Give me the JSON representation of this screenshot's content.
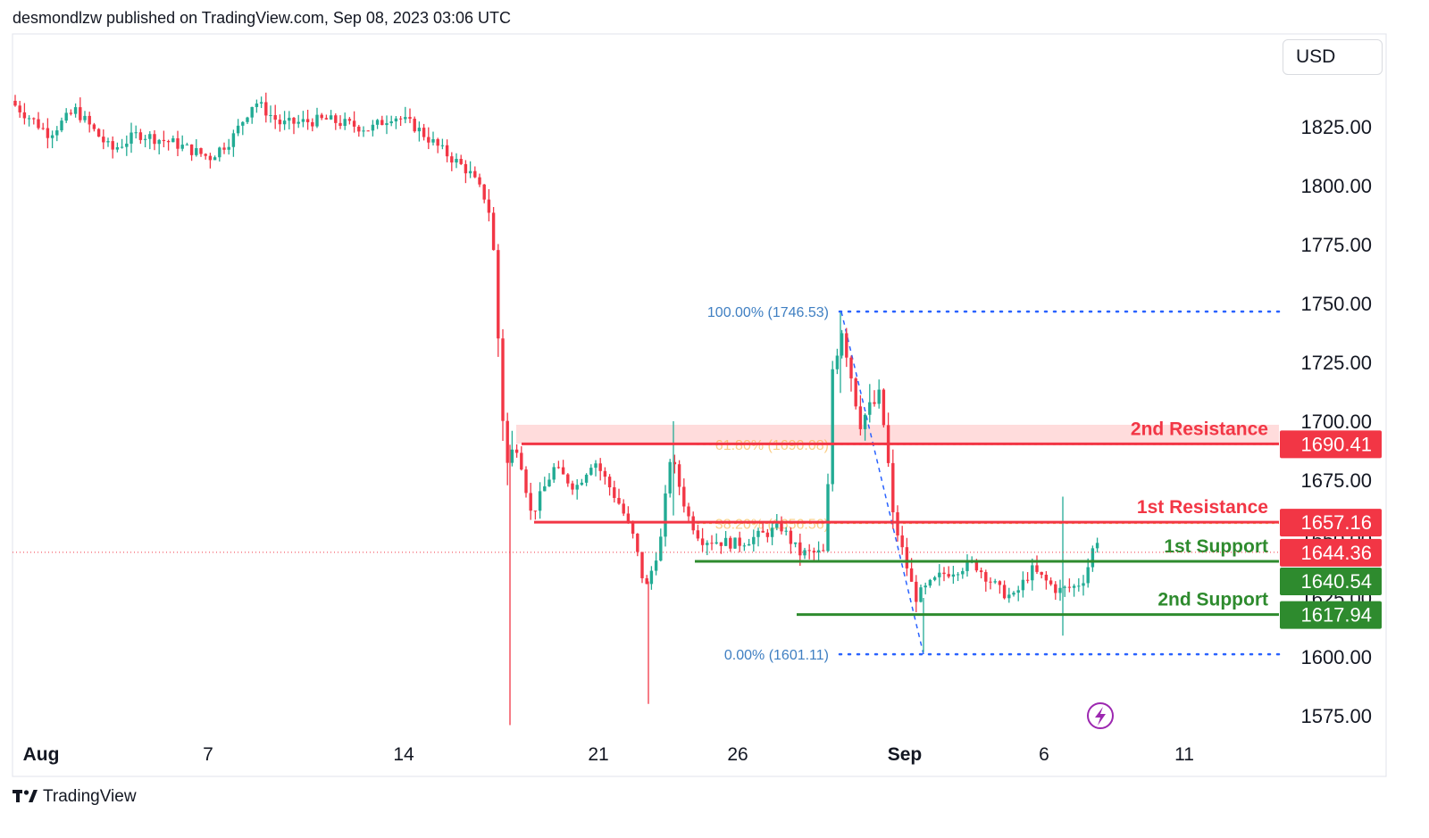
{
  "header": {
    "published": "desmondlzw published on TradingView.com, Sep 08, 2023 03:06 UTC"
  },
  "footer": {
    "brand": "TradingView",
    "logo_icon": "tradingview-logo-icon"
  },
  "currency": "USD",
  "colors": {
    "up": "#22ab94",
    "down": "#f23645",
    "resistance": "#f23645",
    "support": "#2e8b2e",
    "fib": "#2962ff",
    "fib_text": "#3f7fc2",
    "zone": "#ffd6d6"
  },
  "chart_data": {
    "type": "candlestick",
    "symbol_currency": "USD",
    "ylim": [
      1565,
      1850
    ],
    "y_ticks": [
      "1825.00",
      "1800.00",
      "1775.00",
      "1750.00",
      "1725.00",
      "1700.00",
      "1675.00",
      "1650.00",
      "1625.00",
      "1600.00",
      "1575.00"
    ],
    "x_ticks": [
      {
        "label": "Aug",
        "bold": true
      },
      {
        "label": "7",
        "bold": false
      },
      {
        "label": "14",
        "bold": false
      },
      {
        "label": "21",
        "bold": false
      },
      {
        "label": "26",
        "bold": false
      },
      {
        "label": "Sep",
        "bold": true
      },
      {
        "label": "6",
        "bold": false
      },
      {
        "label": "11",
        "bold": false
      }
    ],
    "levels": [
      {
        "name": "2nd Resistance",
        "value": 1690.41,
        "label": "1690.41",
        "kind": "resistance"
      },
      {
        "name": "1st Resistance",
        "value": 1657.16,
        "label": "1657.16",
        "kind": "resistance"
      },
      {
        "name": "1st Support",
        "value": 1640.54,
        "label": "1640.54",
        "kind": "support"
      },
      {
        "name": "2nd Support",
        "value": 1617.94,
        "label": "1617.94",
        "kind": "support"
      }
    ],
    "last_price": {
      "value": 1644.36,
      "label": "1644.36"
    },
    "resistance_zone": [
      1690.41,
      1698.5
    ],
    "fibonacci": [
      {
        "label": "100.00% (1746.53)",
        "value": 1746.53,
        "visible": true
      },
      {
        "label": "61.80% (1690.08)",
        "value": 1690.08,
        "visible": false
      },
      {
        "label": "38.20% (1656.56)",
        "value": 1656.56,
        "visible": false
      },
      {
        "label": "0.00% (1601.11)",
        "value": 1601.11,
        "visible": true
      }
    ],
    "events_icon": "lightning-icon"
  }
}
